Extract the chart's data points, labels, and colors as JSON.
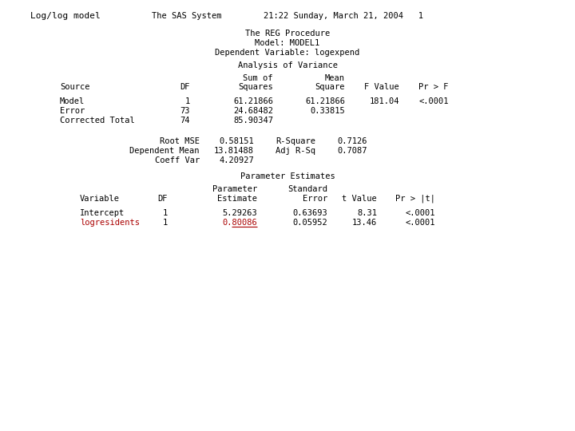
{
  "bg_color": "#ffffff",
  "header_left": "Log/log model",
  "header_center": "The SAS System",
  "header_right": "21:22 Sunday, March 21, 2004   1",
  "proc_title": "The REG Procedure",
  "model_line": "Model: MODEL1",
  "dep_var_line": "Dependent Variable: logexpend",
  "anova_title": "Analysis of Variance",
  "anova_rows": [
    [
      "Model",
      "1",
      "61.21866",
      "61.21866",
      "181.04",
      "<.0001"
    ],
    [
      "Error",
      "73",
      "24.68482",
      "0.33815",
      "",
      ""
    ],
    [
      "Corrected Total",
      "74",
      "85.90347",
      "",
      "",
      ""
    ]
  ],
  "fit_stats": [
    [
      "Root MSE",
      "0.58151",
      "R-Square",
      "0.7126"
    ],
    [
      "Dependent Mean",
      "13.81488",
      "Adj R-Sq",
      "0.7087"
    ],
    [
      "Coeff Var",
      "4.20927",
      "",
      ""
    ]
  ],
  "param_title": "Parameter Estimates",
  "param_rows": [
    [
      "Intercept",
      "1",
      "5.29263",
      "0.63693",
      "8.31",
      "<.0001"
    ],
    [
      "logresidents",
      "1",
      "0.80086",
      "0.05952",
      "13.46",
      "<.0001"
    ]
  ]
}
